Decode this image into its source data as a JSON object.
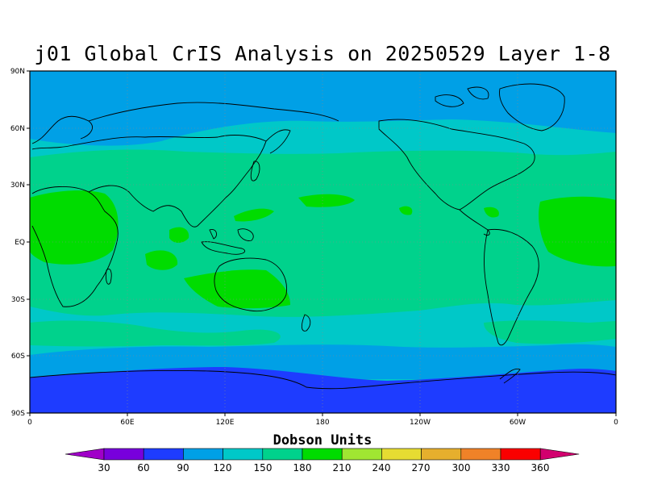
{
  "title": "j01 Global CrIS Analysis on 20250529 Layer 1-8",
  "lat_labels": [
    "90N",
    "60N",
    "30N",
    "EQ",
    "30S",
    "60S",
    "90S"
  ],
  "lon_labels": [
    "0",
    "60E",
    "120E",
    "180",
    "120W",
    "60W",
    "0"
  ],
  "colorbar": {
    "title": "Dobson Units",
    "ticks": [
      "30",
      "60",
      "90",
      "120",
      "150",
      "180",
      "210",
      "240",
      "270",
      "300",
      "330",
      "360"
    ],
    "colors": [
      "#a000c8",
      "#7800dc",
      "#1e3cff",
      "#00a0e6",
      "#00c8c8",
      "#00d28c",
      "#00dc00",
      "#a0e632",
      "#e6dc32",
      "#e6af2d",
      "#f08228",
      "#fa0000",
      "#d2006e"
    ]
  },
  "field_colors": {
    "band_60_90": "#1e3cff",
    "band_90_120": "#00a0e6",
    "band_120_150": "#00c8c8",
    "band_150_180": "#00d28c",
    "band_180_210": "#00dc00"
  }
}
